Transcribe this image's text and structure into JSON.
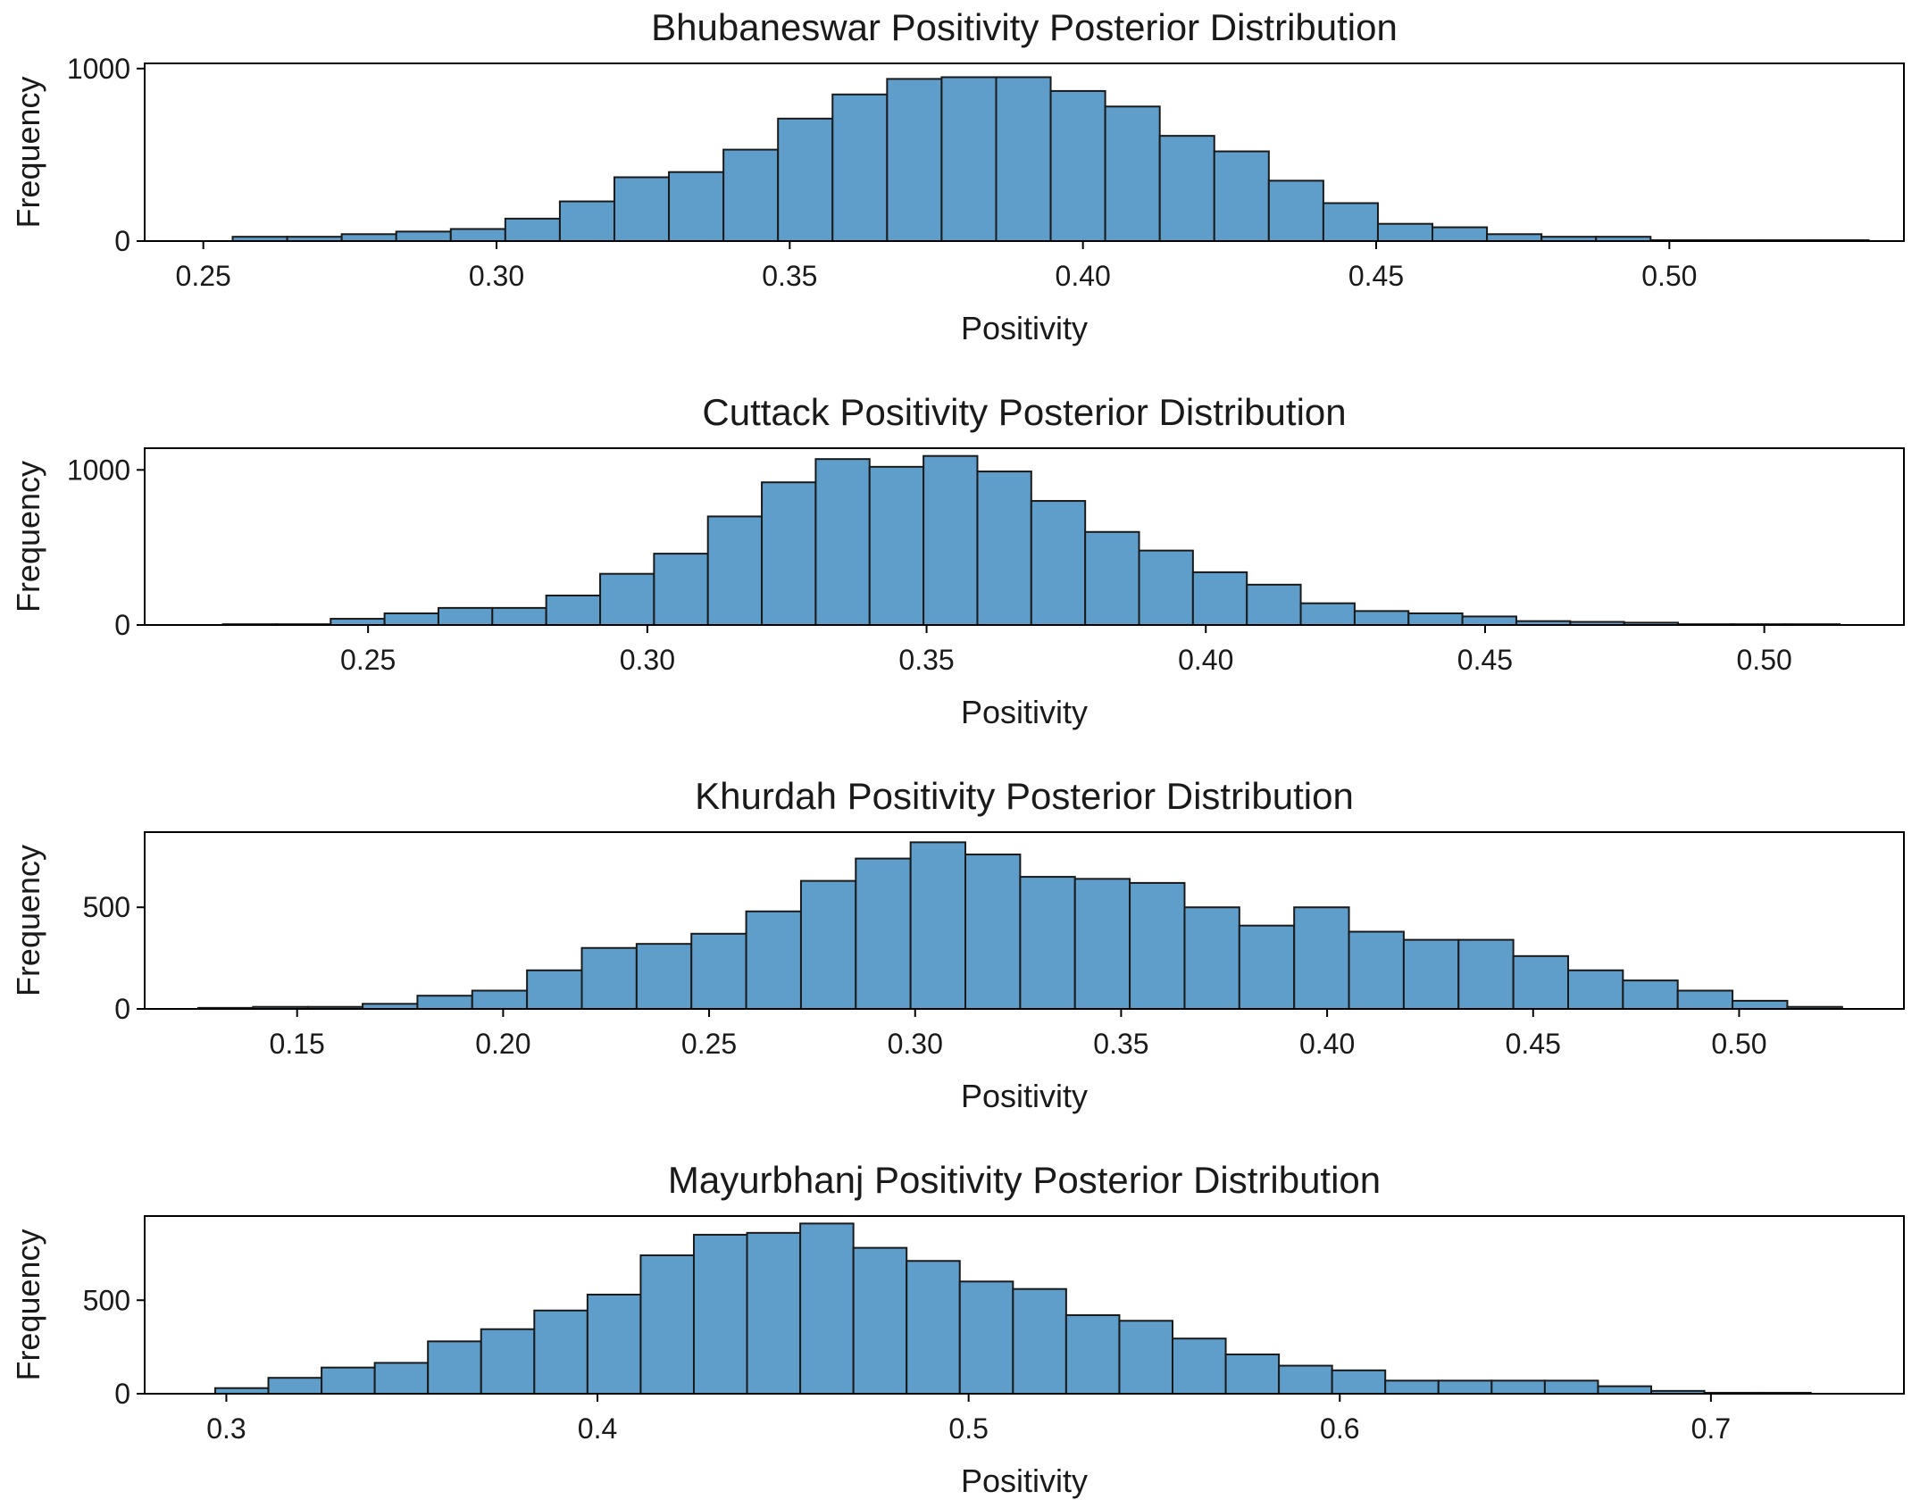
{
  "chart_data": [
    {
      "type": "bar",
      "title": "Bhubaneswar Positivity Posterior Distribution",
      "xlabel": "Positivity",
      "ylabel": "Frequency",
      "xlim": [
        0.24,
        0.54
      ],
      "ylim": [
        0,
        1030
      ],
      "xticks": [
        0.25,
        0.3,
        0.35,
        0.4,
        0.45,
        0.5
      ],
      "xtick_labels": [
        "0.25",
        "0.30",
        "0.35",
        "0.40",
        "0.45",
        "0.50"
      ],
      "yticks": [
        0,
        1000
      ],
      "ytick_labels": [
        "0",
        "1000"
      ],
      "bin_start": 0.255,
      "bin_width": 0.0093,
      "values": [
        25,
        25,
        40,
        55,
        70,
        130,
        230,
        370,
        400,
        530,
        710,
        850,
        940,
        950,
        950,
        870,
        780,
        610,
        520,
        350,
        220,
        100,
        80,
        40,
        25,
        25,
        5,
        5,
        5,
        5
      ]
    },
    {
      "type": "bar",
      "title": "Cuttack Positivity Posterior Distribution",
      "xlabel": "Positivity",
      "ylabel": "Frequency",
      "xlim": [
        0.21,
        0.525
      ],
      "ylim": [
        0,
        1140
      ],
      "xticks": [
        0.25,
        0.3,
        0.35,
        0.4,
        0.45,
        0.5
      ],
      "xtick_labels": [
        "0.25",
        "0.30",
        "0.35",
        "0.40",
        "0.45",
        "0.50"
      ],
      "yticks": [
        0,
        1000
      ],
      "ytick_labels": [
        "0",
        "1000"
      ],
      "bin_start": 0.224,
      "bin_width": 0.00965,
      "values": [
        5,
        5,
        40,
        75,
        110,
        110,
        190,
        330,
        460,
        700,
        920,
        1070,
        1020,
        1090,
        990,
        800,
        600,
        480,
        340,
        260,
        140,
        90,
        75,
        55,
        25,
        20,
        15,
        5,
        5,
        5
      ]
    },
    {
      "type": "bar",
      "title": "Khurdah Positivity Posterior Distribution",
      "xlabel": "Positivity",
      "ylabel": "Frequency",
      "xlim": [
        0.113,
        0.54
      ],
      "ylim": [
        0,
        870
      ],
      "xticks": [
        0.15,
        0.2,
        0.25,
        0.3,
        0.35,
        0.4,
        0.45,
        0.5
      ],
      "xtick_labels": [
        "0.15",
        "0.20",
        "0.25",
        "0.30",
        "0.35",
        "0.40",
        "0.45",
        "0.50"
      ],
      "yticks": [
        0,
        500
      ],
      "ytick_labels": [
        "0",
        "500"
      ],
      "bin_start": 0.126,
      "bin_width": 0.0133,
      "values": [
        5,
        10,
        10,
        25,
        65,
        90,
        190,
        300,
        320,
        370,
        480,
        630,
        740,
        820,
        760,
        650,
        640,
        620,
        500,
        410,
        500,
        380,
        340,
        340,
        260,
        190,
        140,
        90,
        40,
        10
      ]
    },
    {
      "type": "bar",
      "title": "Mayurbhanj Positivity Posterior Distribution",
      "xlabel": "Positivity",
      "ylabel": "Frequency",
      "xlim": [
        0.278,
        0.752
      ],
      "ylim": [
        0,
        950
      ],
      "xticks": [
        0.3,
        0.4,
        0.5,
        0.6,
        0.7
      ],
      "xtick_labels": [
        "0.3",
        "0.4",
        "0.5",
        "0.6",
        "0.7"
      ],
      "yticks": [
        0,
        500
      ],
      "ytick_labels": [
        "0",
        "500"
      ],
      "bin_start": 0.297,
      "bin_width": 0.01433,
      "values": [
        30,
        85,
        140,
        165,
        280,
        345,
        445,
        530,
        740,
        850,
        860,
        910,
        780,
        710,
        600,
        560,
        420,
        390,
        295,
        210,
        150,
        125,
        70,
        70,
        70,
        70,
        40,
        15,
        5,
        5
      ]
    }
  ]
}
